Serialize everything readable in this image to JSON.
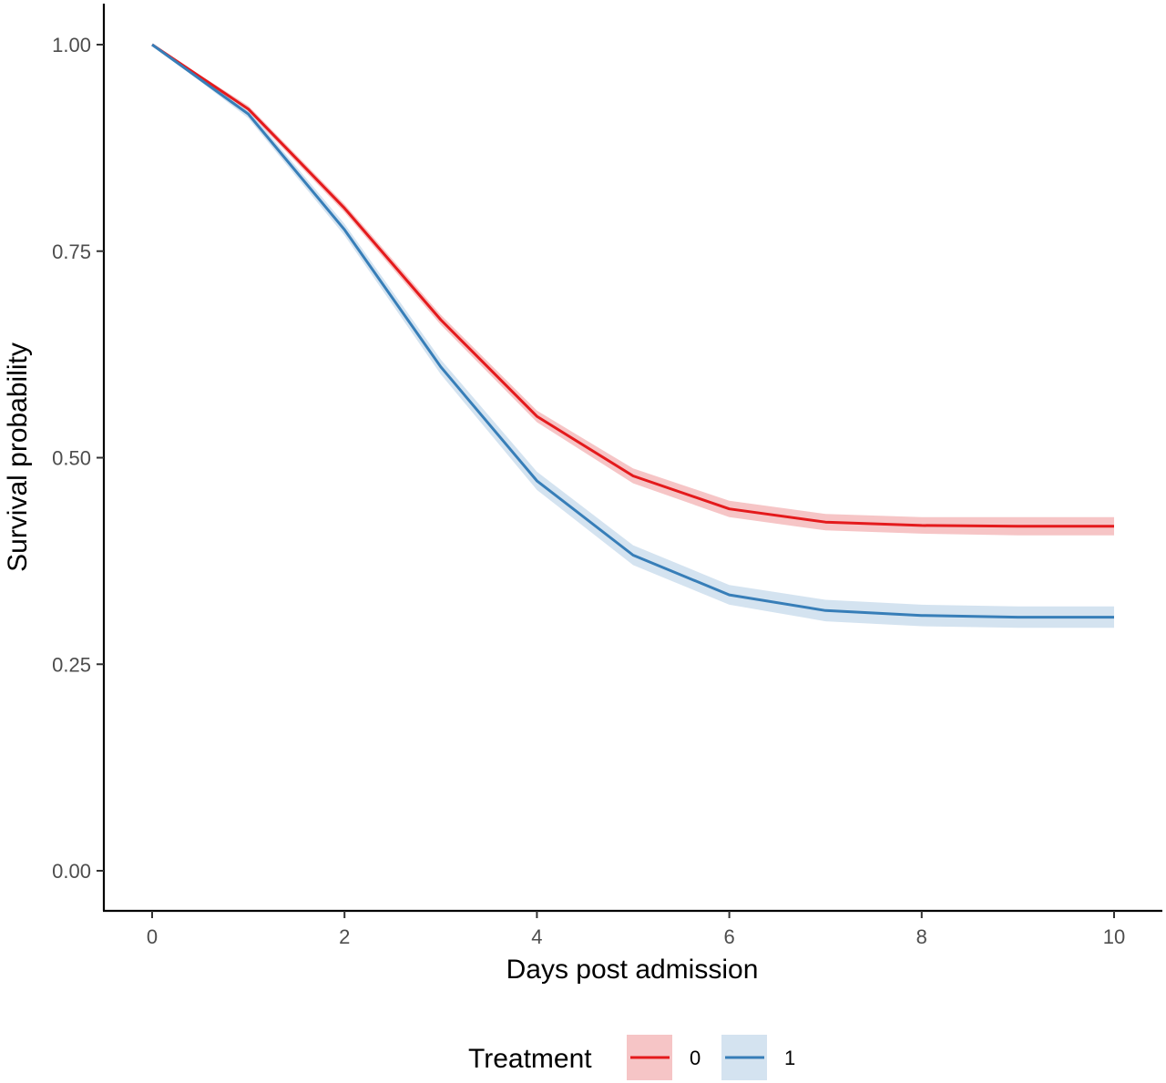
{
  "chart_data": {
    "type": "line",
    "xlabel": "Days post admission",
    "ylabel": "Survival probability",
    "xlim": [
      -0.5,
      10.5
    ],
    "ylim": [
      -0.05,
      1.05
    ],
    "x_ticks": [
      0,
      2,
      4,
      6,
      8,
      10
    ],
    "y_ticks": [
      0,
      0.25,
      0.5,
      0.75,
      1.0
    ],
    "x_tick_labels": [
      "0",
      "2",
      "4",
      "6",
      "8",
      "10"
    ],
    "y_tick_labels": [
      "0.00",
      "0.25",
      "0.50",
      "0.75",
      "1.00"
    ],
    "grid": false,
    "legend": {
      "title": "Treatment",
      "position": "bottom"
    },
    "x": [
      0,
      1,
      2,
      3,
      4,
      5,
      6,
      7,
      8,
      9,
      10
    ],
    "series": [
      {
        "name": "0",
        "color": "#e41a1c",
        "band_color": "#f4b6b8",
        "values": [
          1.0,
          0.922,
          0.802,
          0.667,
          0.55,
          0.478,
          0.438,
          0.422,
          0.418,
          0.417,
          0.417
        ],
        "lower": [
          1.0,
          0.918,
          0.797,
          0.661,
          0.543,
          0.469,
          0.428,
          0.412,
          0.408,
          0.406,
          0.406
        ],
        "upper": [
          1.0,
          0.926,
          0.807,
          0.673,
          0.557,
          0.487,
          0.448,
          0.432,
          0.428,
          0.428,
          0.428
        ]
      },
      {
        "name": "1",
        "color": "#377eb8",
        "band_color": "#c9dcec",
        "values": [
          1.0,
          0.916,
          0.776,
          0.61,
          0.472,
          0.382,
          0.334,
          0.315,
          0.309,
          0.307,
          0.307
        ],
        "lower": [
          1.0,
          0.911,
          0.769,
          0.601,
          0.461,
          0.37,
          0.322,
          0.302,
          0.296,
          0.294,
          0.294
        ],
        "upper": [
          1.0,
          0.921,
          0.783,
          0.619,
          0.483,
          0.394,
          0.346,
          0.328,
          0.322,
          0.32,
          0.32
        ]
      }
    ]
  }
}
